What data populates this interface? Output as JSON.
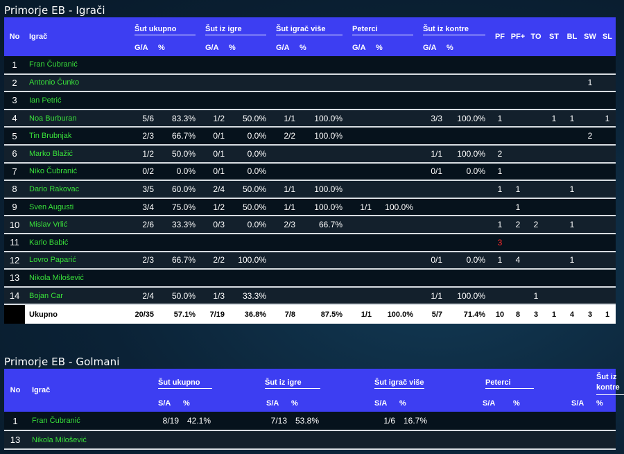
{
  "players_title": "Primorje EB - Igrači",
  "players": {
    "headers": {
      "no": "No",
      "player": "Igrač",
      "groups": [
        "Šut ukupno",
        "Šut iz igre",
        "Šut igrač više",
        "Peterci",
        "Šut iz kontre"
      ],
      "ga": "G/A",
      "pct": "%",
      "stats": [
        "PF",
        "PF+",
        "TO",
        "ST",
        "BL",
        "SW",
        "SL"
      ]
    },
    "rows": [
      {
        "no": "1",
        "name": "Fran Čubranić",
        "c": [
          "",
          "",
          "",
          "",
          "",
          "",
          "",
          "",
          "",
          "",
          "",
          "",
          "",
          "",
          "",
          "",
          ""
        ]
      },
      {
        "no": "2",
        "name": "Antonio Čunko",
        "c": [
          "",
          "",
          "",
          "",
          "",
          "",
          "",
          "",
          "",
          "",
          "",
          "",
          "",
          "",
          "",
          "1",
          ""
        ]
      },
      {
        "no": "3",
        "name": "Ian Petrić",
        "c": [
          "",
          "",
          "",
          "",
          "",
          "",
          "",
          "",
          "",
          "",
          "",
          "",
          "",
          "",
          "",
          "",
          ""
        ]
      },
      {
        "no": "4",
        "name": "Noa Burburan",
        "c": [
          "5/6",
          "83.3%",
          "1/2",
          "50.0%",
          "1/1",
          "100.0%",
          "",
          "",
          "3/3",
          "100.0%",
          "1",
          "",
          "",
          "1",
          "1",
          "",
          "1"
        ]
      },
      {
        "no": "5",
        "name": "Tin Brubnjak",
        "c": [
          "2/3",
          "66.7%",
          "0/1",
          "0.0%",
          "2/2",
          "100.0%",
          "",
          "",
          "",
          "",
          "",
          "",
          "",
          "",
          "",
          "2",
          ""
        ]
      },
      {
        "no": "6",
        "name": "Marko Blažić",
        "c": [
          "1/2",
          "50.0%",
          "0/1",
          "0.0%",
          "",
          "",
          "",
          "",
          "1/1",
          "100.0%",
          "2",
          "",
          "",
          "",
          "",
          "",
          ""
        ]
      },
      {
        "no": "7",
        "name": "Niko Čubranić",
        "c": [
          "0/2",
          "0.0%",
          "0/1",
          "0.0%",
          "",
          "",
          "",
          "",
          "0/1",
          "0.0%",
          "1",
          "",
          "",
          "",
          "",
          "",
          ""
        ]
      },
      {
        "no": "8",
        "name": "Dario Rakovac",
        "c": [
          "3/5",
          "60.0%",
          "2/4",
          "50.0%",
          "1/1",
          "100.0%",
          "",
          "",
          "",
          "",
          "1",
          "1",
          "",
          "",
          "1",
          "",
          ""
        ]
      },
      {
        "no": "9",
        "name": "Sven Augusti",
        "c": [
          "3/4",
          "75.0%",
          "1/2",
          "50.0%",
          "1/1",
          "100.0%",
          "1/1",
          "100.0%",
          "",
          "",
          "",
          "1",
          "",
          "",
          "",
          "",
          ""
        ]
      },
      {
        "no": "10",
        "name": "Mislav Vrlić",
        "c": [
          "2/6",
          "33.3%",
          "0/3",
          "0.0%",
          "2/3",
          "66.7%",
          "",
          "",
          "",
          "",
          "1",
          "2",
          "2",
          "",
          "1",
          "",
          ""
        ]
      },
      {
        "no": "11",
        "name": "Karlo Babić",
        "c": [
          "",
          "",
          "",
          "",
          "",
          "",
          "",
          "",
          "",
          "",
          "3",
          "",
          "",
          "",
          "",
          "",
          ""
        ],
        "red_pf": true
      },
      {
        "no": "12",
        "name": "Lovro Paparić",
        "c": [
          "2/3",
          "66.7%",
          "2/2",
          "100.0%",
          "",
          "",
          "",
          "",
          "0/1",
          "0.0%",
          "1",
          "4",
          "",
          "",
          "1",
          "",
          ""
        ]
      },
      {
        "no": "13",
        "name": "Nikola Milošević",
        "c": [
          "",
          "",
          "",
          "",
          "",
          "",
          "",
          "",
          "",
          "",
          "",
          "",
          "",
          "",
          "",
          "",
          ""
        ]
      },
      {
        "no": "14",
        "name": "Bojan Car",
        "c": [
          "2/4",
          "50.0%",
          "1/3",
          "33.3%",
          "",
          "",
          "",
          "",
          "1/1",
          "100.0%",
          "",
          "",
          "1",
          "",
          "",
          "",
          ""
        ]
      }
    ],
    "total": {
      "label": "Ukupno",
      "c": [
        "20/35",
        "57.1%",
        "7/19",
        "36.8%",
        "7/8",
        "87.5%",
        "1/1",
        "100.0%",
        "5/7",
        "71.4%",
        "10",
        "8",
        "3",
        "1",
        "4",
        "3",
        "1"
      ]
    }
  },
  "goalies_title": "Primorje EB - Golmani",
  "goalies": {
    "headers": {
      "no": "No",
      "player": "Igrač",
      "groups": [
        "Šut ukupno",
        "Šut iz igre",
        "Šut igrač više",
        "Peterci",
        "Šut iz kontre"
      ],
      "sa": "S/A",
      "pct": "%"
    },
    "rows": [
      {
        "no": "1",
        "name": "Fran Čubranić",
        "c": [
          "8/19",
          "42.1%",
          "7/13",
          "53.8%",
          "1/6",
          "16.7%",
          "",
          "",
          "",
          ""
        ]
      },
      {
        "no": "13",
        "name": "Nikola Milošević",
        "c": [
          "",
          "",
          "",
          "",
          "",
          "",
          "",
          "",
          "",
          ""
        ]
      }
    ]
  },
  "colors": {
    "header": "#3d3ef2",
    "name": "#39e13a",
    "alert": "#ff2a2a"
  }
}
